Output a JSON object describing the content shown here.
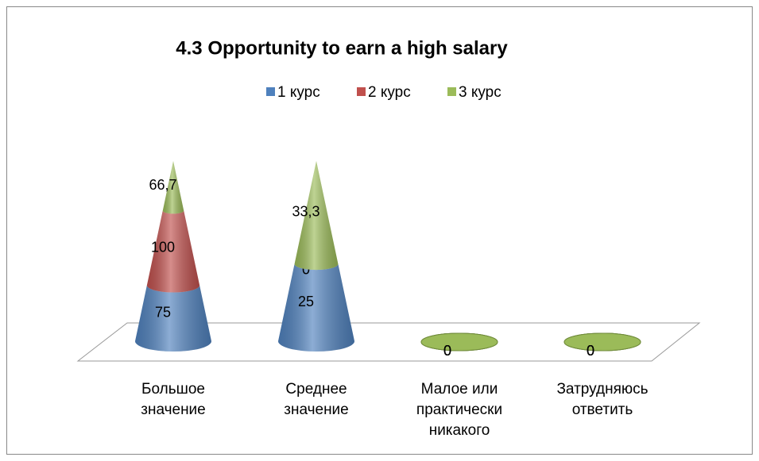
{
  "chart_data": {
    "type": "cone",
    "stacking": "percent",
    "title": "4.3 Opportunity to earn a high salary",
    "categories": [
      "Большое значение",
      "Среднее значение",
      "Малое или практически никакого",
      "Затрудняюсь ответить"
    ],
    "series": [
      {
        "name": "1 курс",
        "color": "#4f81bd",
        "values": [
          75,
          25,
          0,
          0
        ],
        "value_labels": [
          "75",
          "25",
          "0",
          "0"
        ]
      },
      {
        "name": "2 курс",
        "color": "#c0504d",
        "values": [
          100,
          0,
          0,
          0
        ],
        "value_labels": [
          "100",
          "0",
          "0",
          "0"
        ]
      },
      {
        "name": "3 курс",
        "color": "#9bbb59",
        "values": [
          66.7,
          33.3,
          0,
          0
        ],
        "value_labels": [
          "66,7",
          "33,3",
          "0",
          "0"
        ]
      }
    ],
    "legend": "top"
  }
}
